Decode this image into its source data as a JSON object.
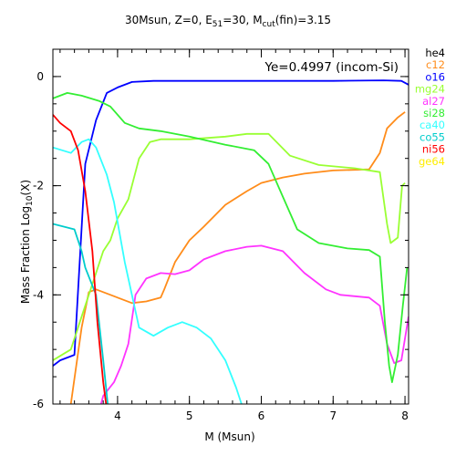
{
  "chart_data": {
    "type": "line",
    "title_parts": [
      {
        "t": "30Msun, Z=0, E",
        "sub": false
      },
      {
        "t": "51",
        "sub": true
      },
      {
        "t": "=30, M",
        "sub": false
      },
      {
        "t": "cut",
        "sub": true
      },
      {
        "t": "(fin)=3.15",
        "sub": false
      }
    ],
    "xlabel": "M (Msun)",
    "ylabel_parts": [
      {
        "t": "Mass Fraction Log",
        "sub": false
      },
      {
        "t": "10",
        "sub": true
      },
      {
        "t": "(X)",
        "sub": false
      }
    ],
    "annotation": "Ye=0.4997 (incom-Si)",
    "xlim": [
      3.1,
      8.05
    ],
    "ylim": [
      -6,
      0.5
    ],
    "xticks": [
      4,
      5,
      6,
      7,
      8
    ],
    "yticks": [
      0,
      -2,
      -4,
      -6
    ],
    "legend_position": "right-outside",
    "series": [
      {
        "name": "he4",
        "color": "#000000",
        "points": []
      },
      {
        "name": "c12",
        "color": "#ff8c1a",
        "points": [
          [
            3.1,
            -6.8
          ],
          [
            3.35,
            -6
          ],
          [
            3.5,
            -4.6
          ],
          [
            3.6,
            -3.95
          ],
          [
            3.7,
            -3.9
          ],
          [
            3.8,
            -3.95
          ],
          [
            4.0,
            -4.05
          ],
          [
            4.2,
            -4.15
          ],
          [
            4.4,
            -4.12
          ],
          [
            4.6,
            -4.05
          ],
          [
            4.65,
            -3.9
          ],
          [
            4.8,
            -3.4
          ],
          [
            5.0,
            -3.0
          ],
          [
            5.2,
            -2.75
          ],
          [
            5.5,
            -2.35
          ],
          [
            5.8,
            -2.1
          ],
          [
            6.0,
            -1.95
          ],
          [
            6.3,
            -1.85
          ],
          [
            6.6,
            -1.78
          ],
          [
            7.0,
            -1.72
          ],
          [
            7.5,
            -1.7
          ],
          [
            7.65,
            -1.4
          ],
          [
            7.75,
            -0.95
          ],
          [
            7.9,
            -0.75
          ],
          [
            8.0,
            -0.65
          ]
        ]
      },
      {
        "name": "o16",
        "color": "#0000ff",
        "points": [
          [
            3.1,
            -5.3
          ],
          [
            3.2,
            -5.2
          ],
          [
            3.4,
            -5.1
          ],
          [
            3.55,
            -1.6
          ],
          [
            3.7,
            -0.8
          ],
          [
            3.85,
            -0.3
          ],
          [
            4.0,
            -0.2
          ],
          [
            4.2,
            -0.1
          ],
          [
            4.5,
            -0.08
          ],
          [
            5.0,
            -0.08
          ],
          [
            6.0,
            -0.08
          ],
          [
            7.0,
            -0.08
          ],
          [
            7.7,
            -0.07
          ],
          [
            7.95,
            -0.08
          ],
          [
            8.05,
            -0.15
          ]
        ]
      },
      {
        "name": "mg24",
        "color": "#99ff33",
        "points": [
          [
            3.1,
            -5.2
          ],
          [
            3.35,
            -5.0
          ],
          [
            3.5,
            -4.4
          ],
          [
            3.6,
            -4.0
          ],
          [
            3.7,
            -3.6
          ],
          [
            3.8,
            -3.2
          ],
          [
            3.9,
            -3.0
          ],
          [
            4.0,
            -2.6
          ],
          [
            4.15,
            -2.25
          ],
          [
            4.3,
            -1.5
          ],
          [
            4.45,
            -1.2
          ],
          [
            4.6,
            -1.15
          ],
          [
            5.0,
            -1.15
          ],
          [
            5.5,
            -1.1
          ],
          [
            5.8,
            -1.05
          ],
          [
            6.1,
            -1.05
          ],
          [
            6.4,
            -1.45
          ],
          [
            6.8,
            -1.62
          ],
          [
            7.3,
            -1.68
          ],
          [
            7.65,
            -1.75
          ],
          [
            7.75,
            -2.7
          ],
          [
            7.8,
            -3.05
          ],
          [
            7.9,
            -2.95
          ],
          [
            7.96,
            -2.0
          ],
          [
            8.0,
            -1.95
          ]
        ]
      },
      {
        "name": "al27",
        "color": "#ff33ff",
        "points": [
          [
            3.75,
            -6.1
          ],
          [
            3.8,
            -5.85
          ],
          [
            3.95,
            -5.6
          ],
          [
            4.05,
            -5.3
          ],
          [
            4.15,
            -4.9
          ],
          [
            4.25,
            -4.0
          ],
          [
            4.4,
            -3.7
          ],
          [
            4.6,
            -3.6
          ],
          [
            4.8,
            -3.62
          ],
          [
            5.0,
            -3.55
          ],
          [
            5.2,
            -3.35
          ],
          [
            5.5,
            -3.2
          ],
          [
            5.8,
            -3.12
          ],
          [
            6.0,
            -3.1
          ],
          [
            6.3,
            -3.2
          ],
          [
            6.6,
            -3.6
          ],
          [
            6.9,
            -3.9
          ],
          [
            7.1,
            -4.0
          ],
          [
            7.5,
            -4.05
          ],
          [
            7.65,
            -4.2
          ],
          [
            7.75,
            -4.9
          ],
          [
            7.85,
            -5.25
          ],
          [
            7.95,
            -5.2
          ],
          [
            8.05,
            -4.4
          ]
        ]
      },
      {
        "name": "si28",
        "color": "#33ee33",
        "points": [
          [
            3.1,
            -0.4
          ],
          [
            3.3,
            -0.3
          ],
          [
            3.5,
            -0.35
          ],
          [
            3.75,
            -0.45
          ],
          [
            3.9,
            -0.55
          ],
          [
            4.1,
            -0.85
          ],
          [
            4.3,
            -0.95
          ],
          [
            4.6,
            -1.0
          ],
          [
            5.0,
            -1.1
          ],
          [
            5.5,
            -1.25
          ],
          [
            5.9,
            -1.35
          ],
          [
            6.1,
            -1.6
          ],
          [
            6.3,
            -2.2
          ],
          [
            6.5,
            -2.8
          ],
          [
            6.8,
            -3.05
          ],
          [
            7.2,
            -3.15
          ],
          [
            7.5,
            -3.18
          ],
          [
            7.65,
            -3.3
          ],
          [
            7.72,
            -4.5
          ],
          [
            7.78,
            -5.3
          ],
          [
            7.82,
            -5.6
          ],
          [
            7.9,
            -5.1
          ],
          [
            7.97,
            -4.2
          ],
          [
            8.03,
            -3.5
          ]
        ]
      },
      {
        "name": "ca40",
        "color": "#33ffff",
        "points": [
          [
            3.1,
            -1.3
          ],
          [
            3.35,
            -1.4
          ],
          [
            3.5,
            -1.2
          ],
          [
            3.6,
            -1.15
          ],
          [
            3.7,
            -1.3
          ],
          [
            3.85,
            -1.8
          ],
          [
            3.95,
            -2.3
          ],
          [
            4.1,
            -3.4
          ],
          [
            4.3,
            -4.6
          ],
          [
            4.5,
            -4.75
          ],
          [
            4.7,
            -4.6
          ],
          [
            4.9,
            -4.5
          ],
          [
            5.1,
            -4.6
          ],
          [
            5.3,
            -4.8
          ],
          [
            5.5,
            -5.2
          ],
          [
            5.65,
            -5.7
          ],
          [
            5.75,
            -6.1
          ]
        ]
      },
      {
        "name": "co55",
        "color": "#00cccc",
        "points": [
          [
            3.1,
            -2.7
          ],
          [
            3.4,
            -2.8
          ],
          [
            3.5,
            -3.2
          ],
          [
            3.55,
            -3.5
          ],
          [
            3.7,
            -4.0
          ],
          [
            3.8,
            -5.2
          ],
          [
            3.87,
            -6.1
          ]
        ]
      },
      {
        "name": "ni56",
        "color": "#ff0000",
        "points": [
          [
            3.1,
            -0.7
          ],
          [
            3.2,
            -0.85
          ],
          [
            3.35,
            -1.0
          ],
          [
            3.45,
            -1.35
          ],
          [
            3.55,
            -2.1
          ],
          [
            3.65,
            -3.2
          ],
          [
            3.72,
            -4.5
          ],
          [
            3.8,
            -5.6
          ],
          [
            3.85,
            -6.1
          ]
        ]
      },
      {
        "name": "ge64",
        "color": "#ffee00",
        "points": []
      }
    ]
  }
}
